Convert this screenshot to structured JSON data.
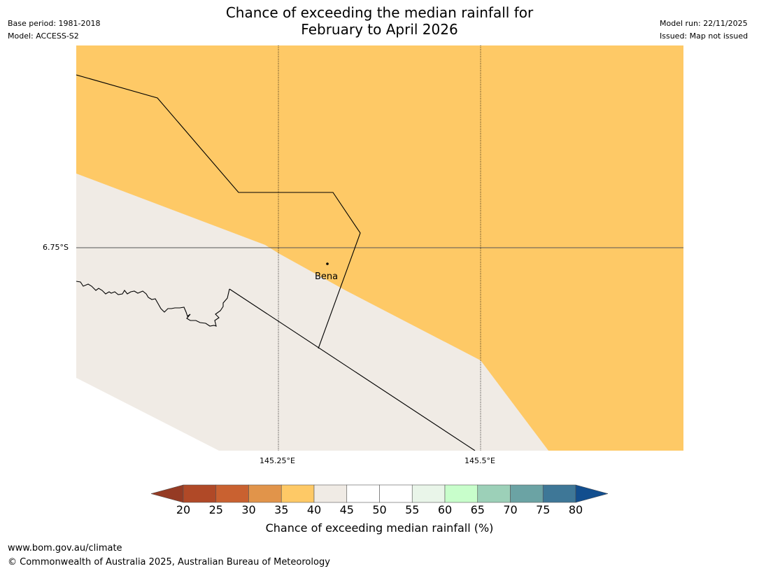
{
  "title_line1": "Chance of exceeding the median rainfall for",
  "title_line2": "February to April 2026",
  "meta_left": {
    "base_period": "Base period: 1981-2018",
    "model": "Model: ACCESS-S2"
  },
  "meta_right": {
    "model_run": "Model run: 22/11/2025",
    "issued": "Issued: Map not issued"
  },
  "map": {
    "lat_label": "6.75°S",
    "lon_labels": [
      "145.25°E",
      "145.5°E"
    ],
    "place": "Bena",
    "colors": {
      "region_35_40": "#fec966",
      "region_40_45": "#f0ebe5",
      "outside": "#ffffff",
      "graticule": "#000000",
      "border": "#000000"
    }
  },
  "colorbar": {
    "ticks": [
      "20",
      "25",
      "30",
      "35",
      "40",
      "45",
      "50",
      "55",
      "60",
      "65",
      "70",
      "75",
      "80"
    ],
    "colors": [
      "#b04927",
      "#c96130",
      "#e1944a",
      "#fec966",
      "#f0ebe5",
      "#ffffff",
      "#ffffff",
      "#e9f5e9",
      "#c8fecb",
      "#9cd0b8",
      "#6ba3a4",
      "#3e7797"
    ],
    "under_color": "#953b24",
    "over_color": "#124e8e",
    "label": "Chance of exceeding median rainfall (%)"
  },
  "footer": {
    "url": "www.bom.gov.au/climate",
    "copyright": "© Commonwealth of Australia 2025, Australian Bureau of Meteorology"
  }
}
